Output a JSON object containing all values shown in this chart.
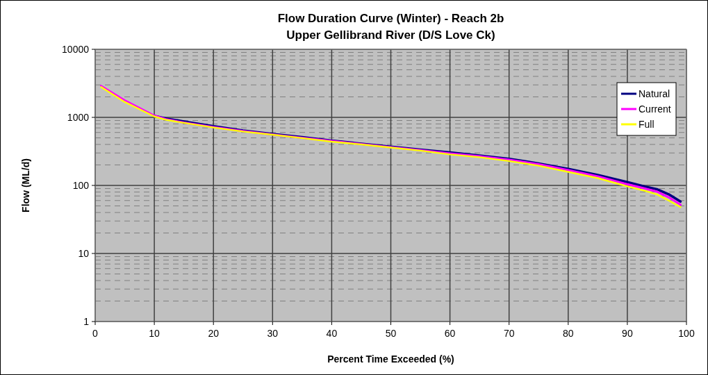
{
  "chart_data": {
    "type": "line",
    "title": "Flow Duration Curve (Winter) - Reach 2b",
    "subtitle": "Upper Gellibrand River (D/S Love Ck)",
    "xlabel": "Percent Time Exceeded (%)",
    "ylabel": "Flow (ML/d)",
    "x": [
      1,
      5,
      10,
      12,
      15,
      20,
      25,
      30,
      35,
      40,
      45,
      50,
      55,
      60,
      65,
      70,
      75,
      80,
      85,
      90,
      93,
      95,
      97,
      99
    ],
    "series": [
      {
        "name": "Natural",
        "color": "#000080",
        "values": [
          null,
          null,
          1050,
          960,
          870,
          740,
          640,
          570,
          510,
          455,
          410,
          370,
          335,
          305,
          275,
          245,
          210,
          175,
          142,
          112,
          96,
          88,
          74,
          58
        ]
      },
      {
        "name": "Current",
        "color": "#ff00ff",
        "values": [
          2900,
          1780,
          1060,
          940,
          840,
          720,
          630,
          560,
          500,
          450,
          405,
          365,
          330,
          295,
          268,
          238,
          205,
          168,
          136,
          104,
          90,
          81,
          67,
          52
        ]
      },
      {
        "name": "Full",
        "color": "#ffff00",
        "values": [
          2800,
          1680,
          1030,
          920,
          830,
          710,
          620,
          555,
          495,
          440,
          400,
          360,
          325,
          285,
          260,
          228,
          195,
          158,
          128,
          97,
          83,
          74,
          60,
          48
        ]
      }
    ],
    "xlim": [
      0,
      100
    ],
    "xticks": [
      0,
      10,
      20,
      30,
      40,
      50,
      60,
      70,
      80,
      90,
      100
    ],
    "ylim": [
      1,
      10000
    ],
    "yticks": [
      1,
      10,
      100,
      1000,
      10000
    ],
    "log": "y",
    "grid": true,
    "legend": "top right",
    "marker": "none",
    "line_style": "solid"
  }
}
